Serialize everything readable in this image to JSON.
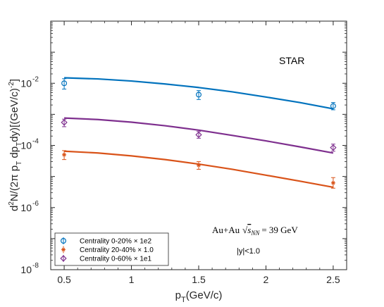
{
  "chart_data": {
    "type": "scatter",
    "xlabel": "p_T(GeV/c)",
    "ylabel": "d²N/(2π p_T dp_T dy)[(GeV/c)⁻²]",
    "xlim": [
      0.4,
      2.6
    ],
    "ylim": [
      1e-08,
      1.0
    ],
    "yscale": "log",
    "grid": false,
    "legend_position": "bottom-left",
    "x_ticks": [
      {
        "value": 0.5,
        "label": "0.5"
      },
      {
        "value": 1,
        "label": "1"
      },
      {
        "value": 1.5,
        "label": "1.5"
      },
      {
        "value": 2,
        "label": "2"
      },
      {
        "value": 2.5,
        "label": "2.5"
      }
    ],
    "y_ticks": [
      {
        "value": 1e-08,
        "base": "10",
        "exp": "-8"
      },
      {
        "value": 1e-06,
        "base": "10",
        "exp": "-6"
      },
      {
        "value": 0.0001,
        "base": "10",
        "exp": "-4"
      },
      {
        "value": 0.01,
        "base": "10",
        "exp": "-2"
      }
    ],
    "annotations": {
      "experiment": "STAR",
      "system_prefix": "Au+Au",
      "system_energy": "= 39 GeV",
      "rapidity_cut": "|y|<1.0"
    },
    "series": [
      {
        "name": "Centrality  0-20% × 1e2",
        "color": "#0072BD",
        "marker": "circle",
        "x": [
          0.5,
          1.5,
          2.5
        ],
        "y": [
          0.01,
          0.0043,
          0.00185
        ],
        "err_lo": [
          0.0035,
          0.0013,
          0.00045
        ],
        "err_hi": [
          0.004,
          0.0015,
          0.00055
        ],
        "fit_x": [
          0.5,
          0.75,
          1.0,
          1.25,
          1.5,
          1.75,
          2.0,
          2.25,
          2.5
        ],
        "fit_y": [
          0.015,
          0.0138,
          0.0118,
          0.0095,
          0.0073,
          0.0053,
          0.0036,
          0.0024,
          0.0015
        ]
      },
      {
        "name": "Centrality 20-40% × 1.0",
        "color": "#D95319",
        "marker": "star",
        "x": [
          0.5,
          1.5,
          2.5
        ],
        "y": [
          5e-05,
          2.3e-05,
          6.2e-06
        ],
        "err_lo": [
          1.5e-05,
          6e-06,
          2e-06
        ],
        "err_hi": [
          1.8e-05,
          7e-06,
          3e-06
        ],
        "fit_x": [
          0.5,
          0.75,
          1.0,
          1.25,
          1.5,
          1.75,
          2.0,
          2.25,
          2.5
        ],
        "fit_y": [
          6.5e-05,
          5.7e-05,
          4.6e-05,
          3.5e-05,
          2.5e-05,
          1.7e-05,
          1.1e-05,
          7.1e-06,
          4.5e-06
        ]
      },
      {
        "name": "Centrality  0-60% × 1e1",
        "color": "#7E2F8E",
        "marker": "diamond",
        "x": [
          0.5,
          1.5,
          2.5
        ],
        "y": [
          0.00055,
          0.00022,
          8.5e-05
        ],
        "err_lo": [
          0.00015,
          5e-05,
          2e-05
        ],
        "err_hi": [
          0.00015,
          6e-05,
          2.5e-05
        ],
        "fit_x": [
          0.5,
          0.75,
          1.0,
          1.25,
          1.5,
          1.75,
          2.0,
          2.25,
          2.5
        ],
        "fit_y": [
          0.00076,
          0.00068,
          0.00056,
          0.00043,
          0.00031,
          0.00021,
          0.00014,
          9e-05,
          5.7e-05
        ]
      }
    ]
  }
}
